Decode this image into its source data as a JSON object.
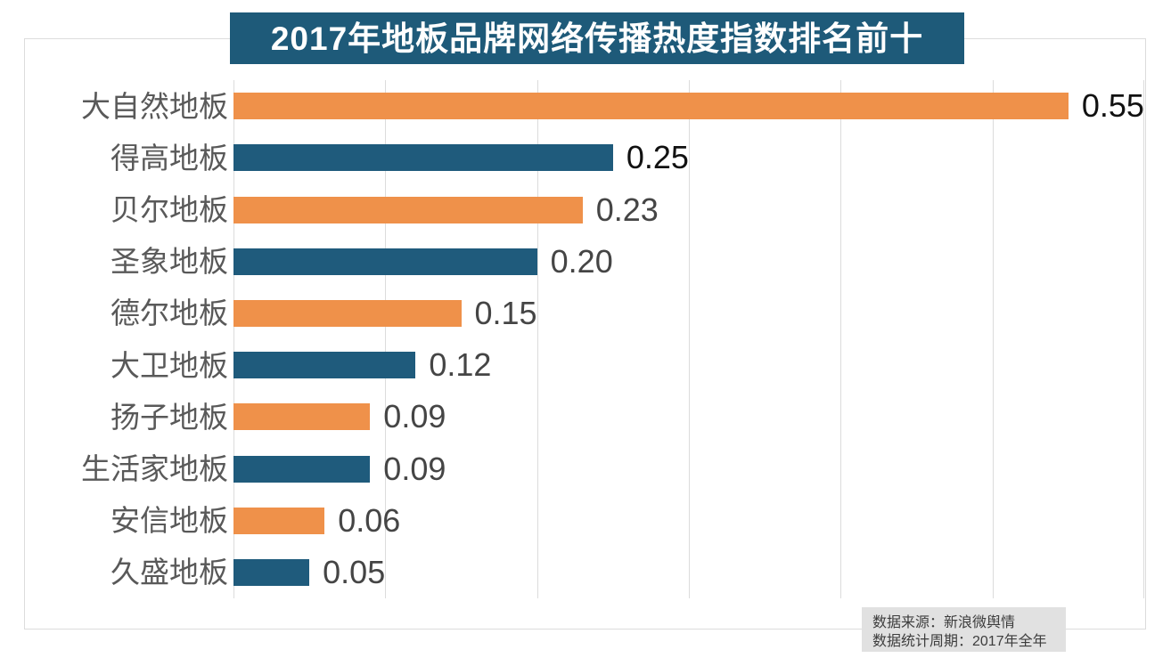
{
  "title": "2017年地板品牌网络传播热度指数排名前十",
  "source": {
    "line1": "数据来源：新浪微舆情",
    "line2": "数据统计周期：2017年全年"
  },
  "colors": {
    "orange": "#ef914a",
    "blue": "#1f5b7c",
    "banner_bg": "#1e5a79",
    "grid": "#dcdcdc",
    "category_label": "#595959",
    "value_emphasis": "#111111",
    "value_normal": "#454545",
    "source_bg": "#e1e1e1",
    "source_text": "#3d3d3d"
  },
  "chart_data": {
    "type": "bar",
    "orientation": "horizontal",
    "title": "2017年地板品牌网络传播热度指数排名前十",
    "categories": [
      "大自然地板",
      "得高地板",
      "贝尔地板",
      "圣象地板",
      "德尔地板",
      "大卫地板",
      "扬子地板",
      "生活家地板",
      "安信地板",
      "久盛地板"
    ],
    "values": [
      0.55,
      0.25,
      0.23,
      0.2,
      0.15,
      0.12,
      0.09,
      0.09,
      0.06,
      0.05
    ],
    "value_labels": [
      "0.55",
      "0.25",
      "0.23",
      "0.20",
      "0.15",
      "0.12",
      "0.09",
      "0.09",
      "0.06",
      "0.05"
    ],
    "bar_colors": [
      "orange",
      "blue",
      "orange",
      "blue",
      "orange",
      "blue",
      "orange",
      "blue",
      "orange",
      "blue"
    ],
    "value_label_emphasis": [
      true,
      true,
      false,
      false,
      false,
      false,
      false,
      false,
      false,
      false
    ],
    "xlabel": "",
    "ylabel": "",
    "xlim": [
      0,
      0.6
    ],
    "gridline_interval": 0.1,
    "grid": true,
    "legend": false
  }
}
